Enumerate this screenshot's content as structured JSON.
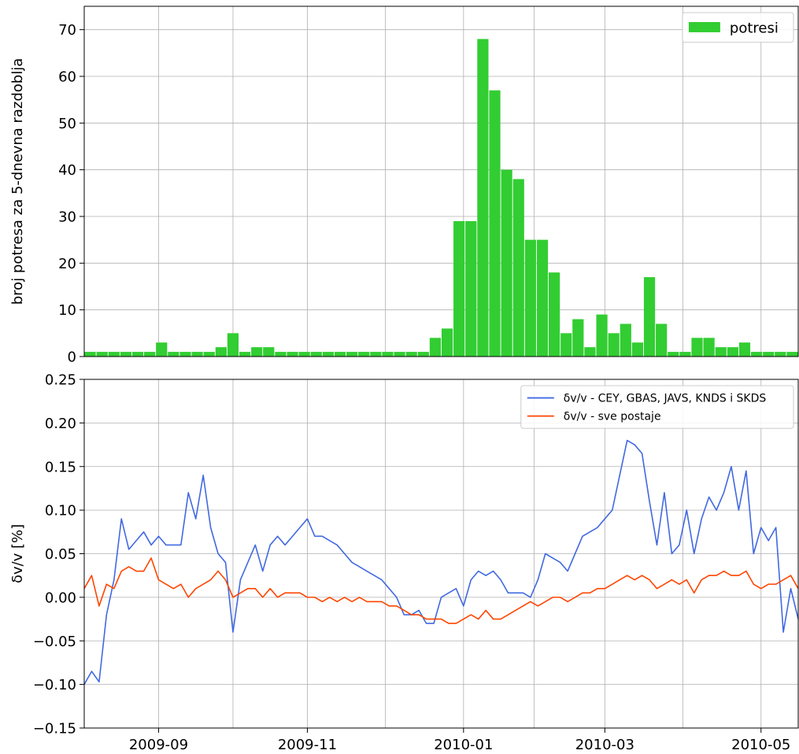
{
  "chart_data": [
    {
      "type": "bar",
      "ylabel": "broj potresa za 5-dnevna razdoblja",
      "categories": [
        null,
        null,
        null,
        null,
        null,
        null,
        null,
        null,
        null,
        null,
        null,
        null,
        null,
        null,
        null,
        null,
        null,
        null,
        null,
        null,
        null,
        null,
        null,
        null,
        null,
        null,
        null,
        null,
        null,
        null,
        null,
        null,
        null,
        null,
        null,
        null,
        null,
        null,
        null,
        null,
        null,
        null,
        null,
        null,
        null,
        null,
        null,
        null,
        null,
        null,
        null,
        null,
        null,
        null,
        null,
        null,
        null,
        null,
        null,
        null
      ],
      "series": [
        {
          "name": "potresi",
          "color": "#32cd32",
          "values": [
            1,
            1,
            1,
            1,
            1,
            1,
            3,
            1,
            1,
            1,
            1,
            2,
            5,
            1,
            2,
            2,
            1,
            1,
            1,
            1,
            1,
            1,
            1,
            1,
            1,
            1,
            1,
            1,
            1,
            4,
            6,
            29,
            29,
            68,
            57,
            40,
            38,
            25,
            25,
            18,
            5,
            8,
            2,
            9,
            5,
            7,
            3,
            17,
            7,
            1,
            1,
            4,
            4,
            2,
            2,
            3,
            1,
            1,
            1,
            1
          ]
        }
      ],
      "ylim": [
        0,
        75
      ],
      "yticks": [
        0,
        10,
        20,
        30,
        40,
        50,
        60,
        70
      ],
      "grid": true,
      "legend": "upper right"
    },
    {
      "type": "line",
      "ylabel": "δv/v [%]",
      "categories": [
        null,
        null,
        null,
        null,
        null,
        null,
        null,
        null,
        null,
        null,
        "2009-09",
        null,
        null,
        null,
        null,
        null,
        null,
        null,
        null,
        null,
        null,
        null,
        null,
        null,
        null,
        null,
        null,
        null,
        null,
        null,
        "2009-11",
        null,
        null,
        null,
        null,
        null,
        null,
        null,
        null,
        null,
        null,
        null,
        null,
        null,
        null,
        null,
        null,
        null,
        null,
        null,
        null,
        "2010-01",
        null,
        null,
        null,
        null,
        null,
        null,
        null,
        null,
        null,
        null,
        null,
        null,
        null,
        null,
        null,
        null,
        null,
        null,
        "2010-03",
        null,
        null,
        null,
        null,
        null,
        null,
        null,
        null,
        null,
        null,
        null,
        null,
        null,
        null,
        null,
        null,
        null,
        null,
        null,
        null,
        "2010-05",
        null,
        null,
        null,
        null,
        null
      ],
      "series": [
        {
          "name": "δv/v - CEY, GBAS, JAVS, KNDS i SKDS",
          "color": "#4169e1",
          "values": [
            -0.1,
            -0.085,
            -0.097,
            -0.02,
            0.02,
            0.09,
            0.055,
            0.065,
            0.075,
            0.06,
            0.07,
            0.06,
            0.06,
            0.06,
            0.12,
            0.09,
            0.14,
            0.08,
            0.05,
            0.04,
            -0.04,
            0.02,
            0.04,
            0.06,
            0.03,
            0.06,
            0.07,
            0.06,
            0.07,
            0.08,
            0.09,
            0.07,
            0.07,
            0.065,
            0.06,
            0.05,
            0.04,
            0.035,
            0.03,
            0.025,
            0.02,
            0.01,
            0,
            -0.02,
            -0.02,
            -0.015,
            -0.03,
            -0.03,
            0,
            0.005,
            0.01,
            -0.01,
            0.02,
            0.03,
            0.025,
            0.03,
            0.02,
            0.005,
            0.005,
            0.005,
            0,
            0.02,
            0.05,
            0.045,
            0.04,
            0.03,
            0.05,
            0.07,
            0.075,
            0.08,
            0.09,
            0.1,
            0.14,
            0.18,
            0.175,
            0.165,
            0.11,
            0.06,
            0.12,
            0.05,
            0.06,
            0.1,
            0.05,
            0.09,
            0.115,
            0.1,
            0.12,
            0.15,
            0.1,
            0.145,
            0.05,
            0.08,
            0.065,
            0.08,
            -0.04,
            0.01,
            -0.025
          ]
        },
        {
          "name": "δv/v - sve postaje",
          "color": "#ff4500",
          "values": [
            0.01,
            0.025,
            -0.01,
            0.015,
            0.01,
            0.03,
            0.035,
            0.03,
            0.03,
            0.045,
            0.02,
            0.015,
            0.01,
            0.015,
            0,
            0.01,
            0.015,
            0.02,
            0.03,
            0.02,
            0,
            0.005,
            0.01,
            0.01,
            0,
            0.01,
            0,
            0.005,
            0.005,
            0.005,
            0,
            0,
            -0.005,
            0,
            -0.005,
            0,
            -0.005,
            0,
            -0.005,
            -0.005,
            -0.005,
            -0.01,
            -0.01,
            -0.015,
            -0.02,
            -0.02,
            -0.025,
            -0.025,
            -0.025,
            -0.03,
            -0.03,
            -0.025,
            -0.02,
            -0.025,
            -0.015,
            -0.025,
            -0.025,
            -0.02,
            -0.015,
            -0.01,
            -0.005,
            -0.01,
            -0.005,
            0,
            0,
            -0.005,
            0,
            0.005,
            0.005,
            0.01,
            0.01,
            0.015,
            0.02,
            0.025,
            0.02,
            0.025,
            0.02,
            0.01,
            0.015,
            0.02,
            0.015,
            0.02,
            0.005,
            0.02,
            0.025,
            0.025,
            0.03,
            0.025,
            0.025,
            0.03,
            0.015,
            0.01,
            0.015,
            0.015,
            0.02,
            0.025,
            0.01
          ]
        }
      ],
      "ylim": [
        -0.15,
        0.25
      ],
      "yticks": [
        {
          "value": -0.15,
          "label": "−0.15"
        },
        {
          "value": -0.1,
          "label": "−0.10"
        },
        {
          "value": -0.05,
          "label": "−0.05"
        },
        {
          "value": 0,
          "label": "0.00"
        },
        0.05,
        {
          "value": 0.1,
          "label": "0.10"
        },
        0.15,
        {
          "value": 0.2,
          "label": "0.20"
        },
        0.25
      ],
      "grid": true,
      "legend": "upper right"
    }
  ]
}
